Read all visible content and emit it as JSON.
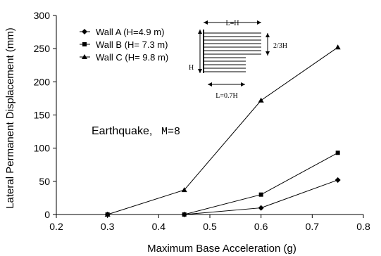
{
  "chart_data": {
    "type": "line",
    "xlabel": "Maximum Base Acceleration (g)",
    "ylabel": "Lateral Permanent Displacement (mm)",
    "xlim": [
      0.2,
      0.8
    ],
    "ylim": [
      0,
      300
    ],
    "xticks": [
      "0.2",
      "0.3",
      "0.4",
      "0.5",
      "0.6",
      "0.7",
      "0.8"
    ],
    "yticks": [
      "0",
      "50",
      "100",
      "150",
      "200",
      "250",
      "300"
    ],
    "grid": false,
    "legend_position": "top-left",
    "series": [
      {
        "name": "Wall A (H=4.9 m)",
        "marker": "diamond",
        "x": [
          0.3,
          0.45,
          0.6,
          0.75
        ],
        "y": [
          0,
          0,
          10,
          52
        ]
      },
      {
        "name": "Wall B (H= 7.3 m)",
        "marker": "square",
        "x": [
          0.3,
          0.45,
          0.6,
          0.75
        ],
        "y": [
          0,
          0,
          30,
          93
        ]
      },
      {
        "name": "Wall C (H= 9.8 m)",
        "marker": "triangle",
        "x": [
          0.3,
          0.45,
          0.6,
          0.75
        ],
        "y": [
          0,
          37,
          172,
          252
        ]
      }
    ],
    "annotation": {
      "label": "Earthquake,",
      "value": "M=8"
    },
    "inset": {
      "top_label": "L=H",
      "side_label": "2/3H",
      "height_label": "H",
      "bottom_label": "L=0.7H"
    }
  },
  "colors": {
    "line": "#000000",
    "background": "#ffffff"
  }
}
